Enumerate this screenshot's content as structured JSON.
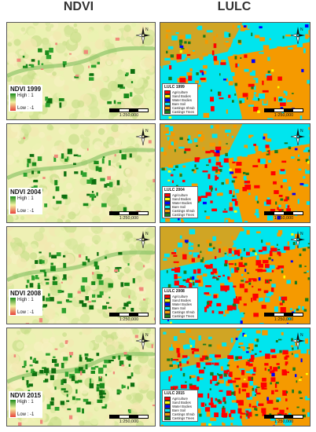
{
  "headers": {
    "ndvi": "NDVI",
    "lulc": "LULC"
  },
  "ndvi_panels": [
    {
      "title": "NDVI 1999",
      "high": "High : 1",
      "low": "Low : -1",
      "scale": "1:250,000"
    },
    {
      "title": "NDVI 2004",
      "high": "High : 1",
      "low": "Low : -1",
      "scale": "1:250,000"
    },
    {
      "title": "NDVI 2008",
      "high": "High : 1",
      "low": "Low : -1",
      "scale": "1:250,000"
    },
    {
      "title": "NDVI 2015",
      "high": "High : 1",
      "low": "Low : -1",
      "scale": "1:250,000"
    }
  ],
  "lulc_panels": [
    {
      "title": "LULC 1999",
      "scale": "1:250,000"
    },
    {
      "title": "LULC 2004",
      "scale": "1:250,000"
    },
    {
      "title": "LULC 2008",
      "scale": "1:250,000"
    },
    {
      "title": "LULC 2015",
      "scale": "1:250,000"
    }
  ],
  "lulc_classes": [
    {
      "label": "Agriculture",
      "color": "#ff0000"
    },
    {
      "label": "Sand Bodies",
      "color": "#ffff00"
    },
    {
      "label": "Water Bodies",
      "color": "#0000ff"
    },
    {
      "label": "Bare Soil",
      "color": "#00e5ee"
    },
    {
      "label": "Castings Shrub",
      "color": "#f59a00"
    },
    {
      "label": "Castings Trees",
      "color": "#1a7a1a"
    }
  ],
  "north_label": "N"
}
